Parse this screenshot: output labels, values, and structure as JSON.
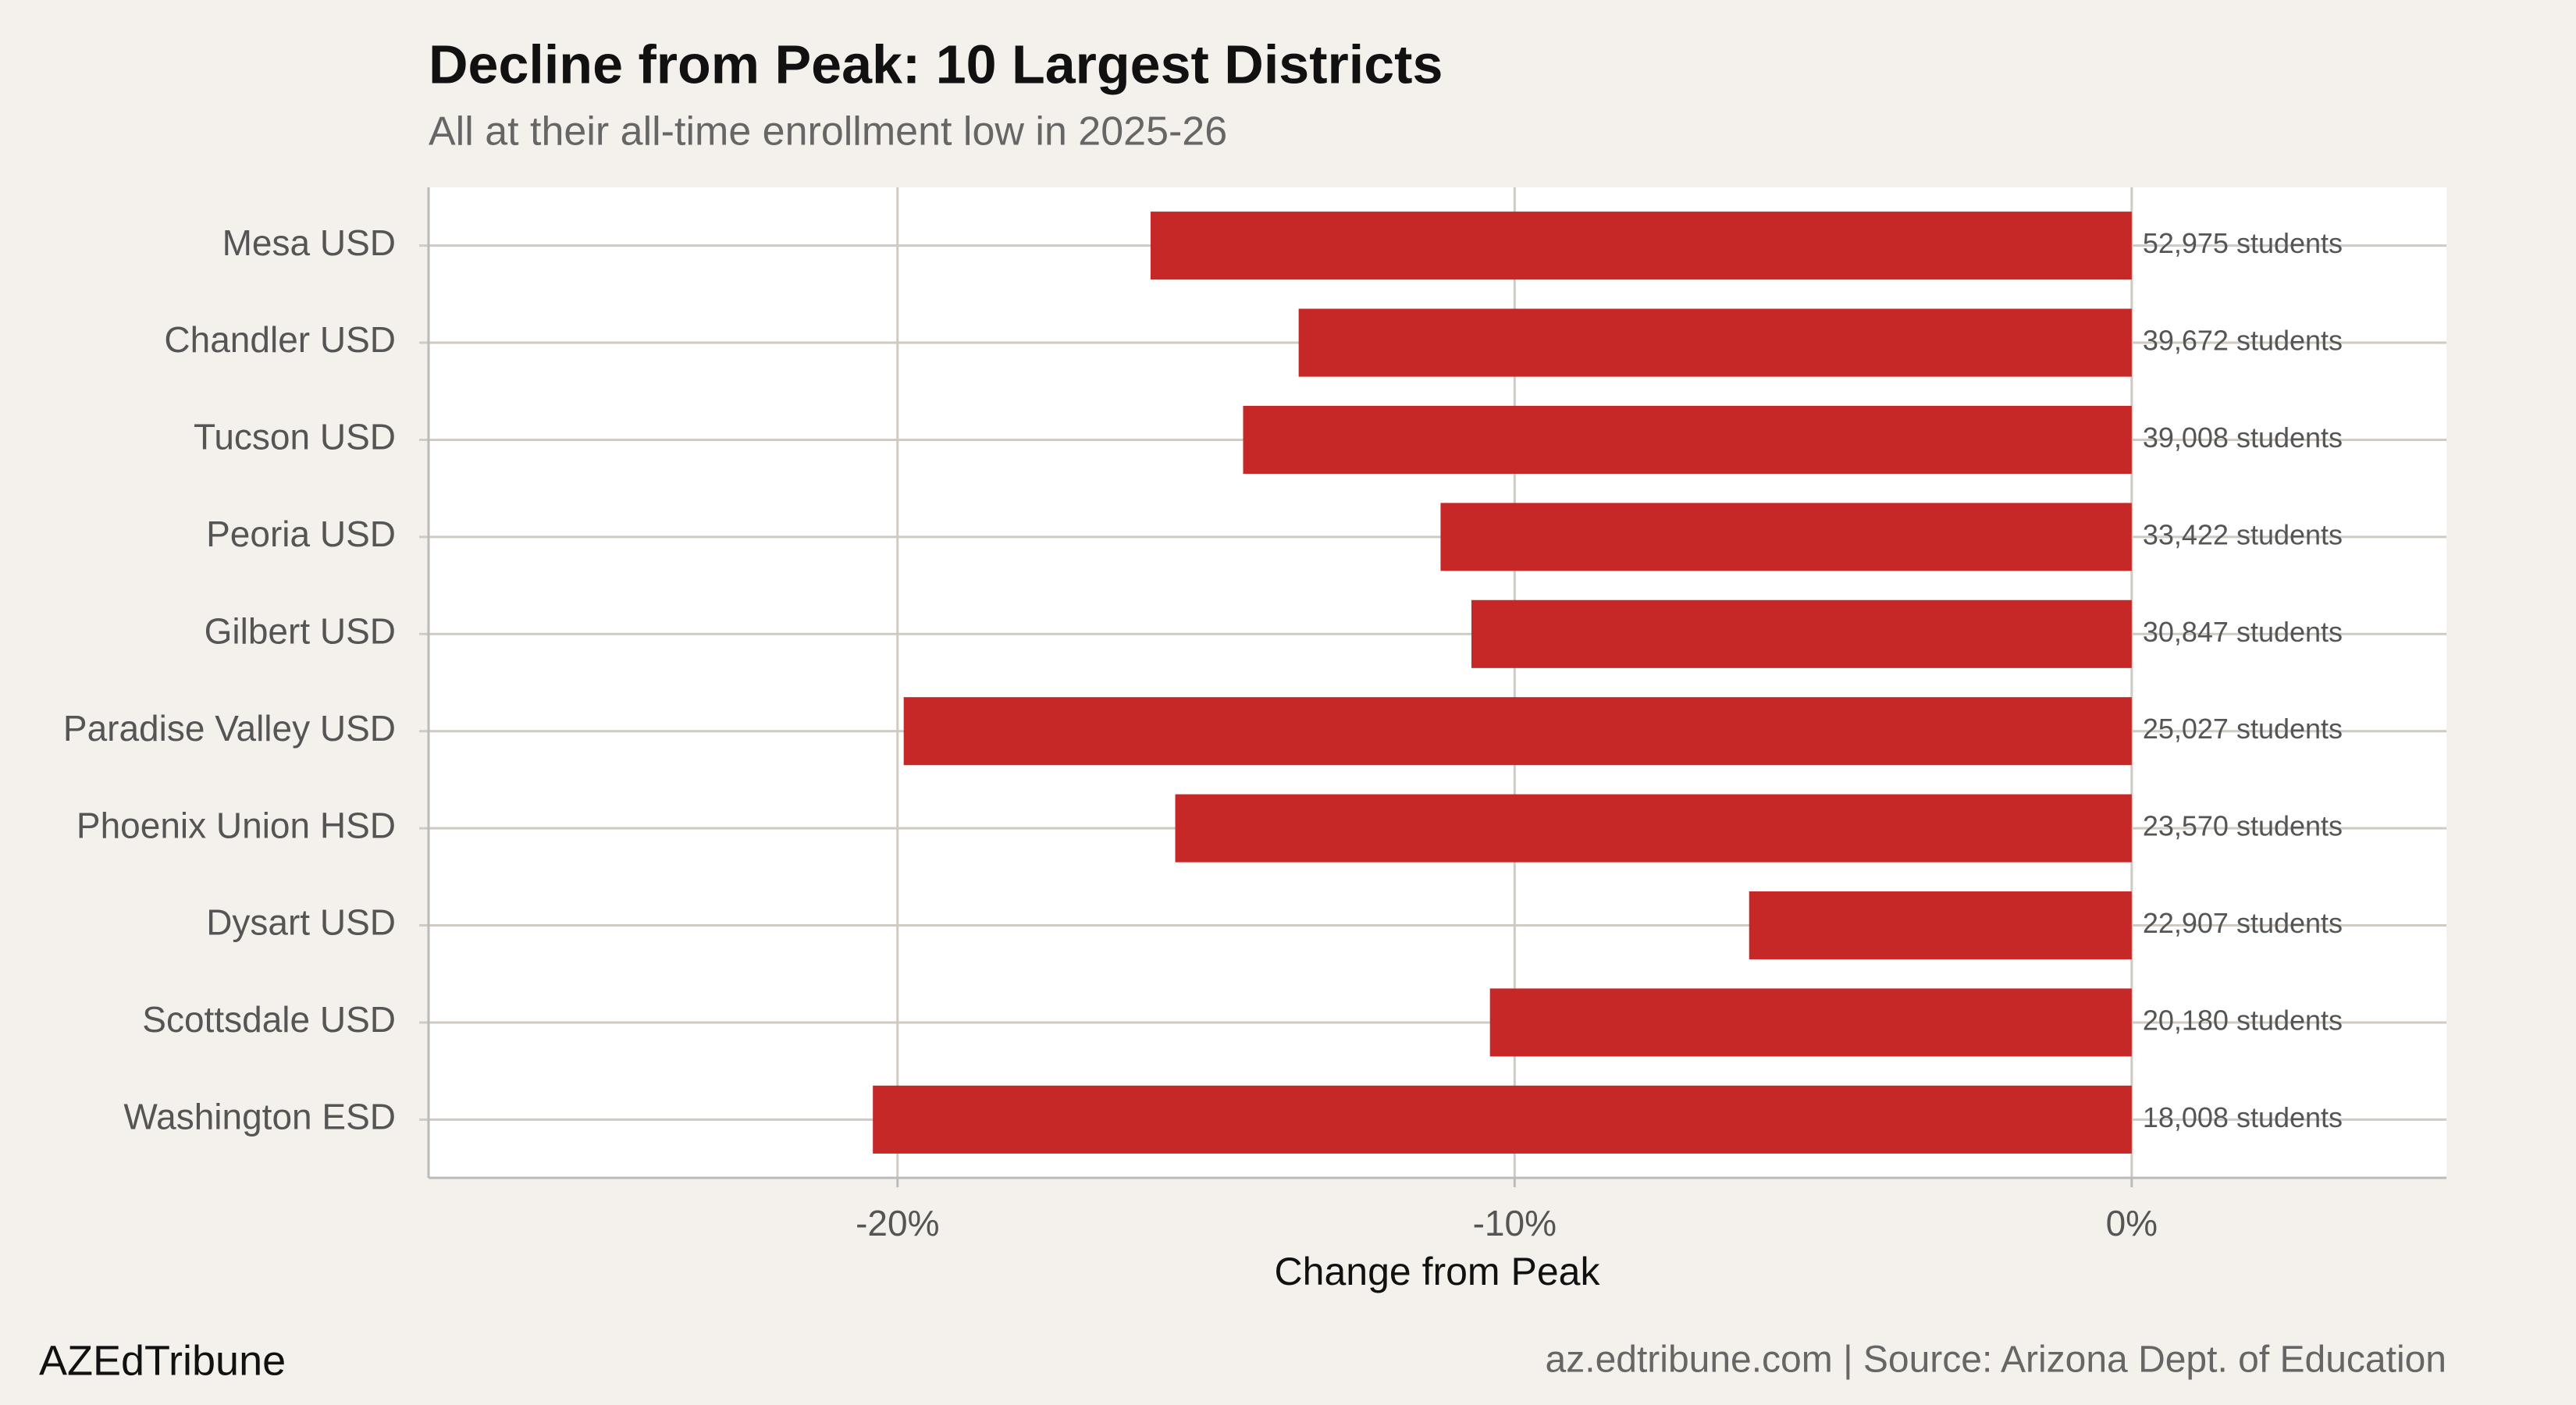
{
  "chart_data": {
    "type": "hbar",
    "title": "Decline from Peak: 10 Largest Districts",
    "subtitle": "All at their all-time enrollment low in 2025-26",
    "x_label": "Change from Peak",
    "categories": [
      "Mesa USD",
      "Chandler USD",
      "Tucson USD",
      "Peoria USD",
      "Gilbert USD",
      "Paradise Valley USD",
      "Phoenix Union HSD",
      "Dysart USD",
      "Scottsdale USD",
      "Washington ESD"
    ],
    "values": [
      -15.9,
      -13.5,
      -14.4,
      -11.2,
      -10.7,
      -19.9,
      -15.5,
      -6.2,
      -10.4,
      -20.4
    ],
    "annotations": [
      "52,975 students",
      "39,672 students",
      "39,008 students",
      "33,422 students",
      "30,847 students",
      "25,027 students",
      "23,570 students",
      "22,907 students",
      "20,180 students",
      "18,008 students"
    ],
    "color": "#c62828",
    "xlim": [
      -27.6,
      5.1
    ],
    "xticks": [
      {
        "value": -20,
        "label": "-20%"
      },
      {
        "value": -10,
        "label": "-10%"
      },
      {
        "value": 0,
        "label": "0%"
      }
    ],
    "grid": true,
    "branding": "AZEdTribune",
    "source": "az.edtribune.com | Source: Arizona Dept. of Education"
  }
}
